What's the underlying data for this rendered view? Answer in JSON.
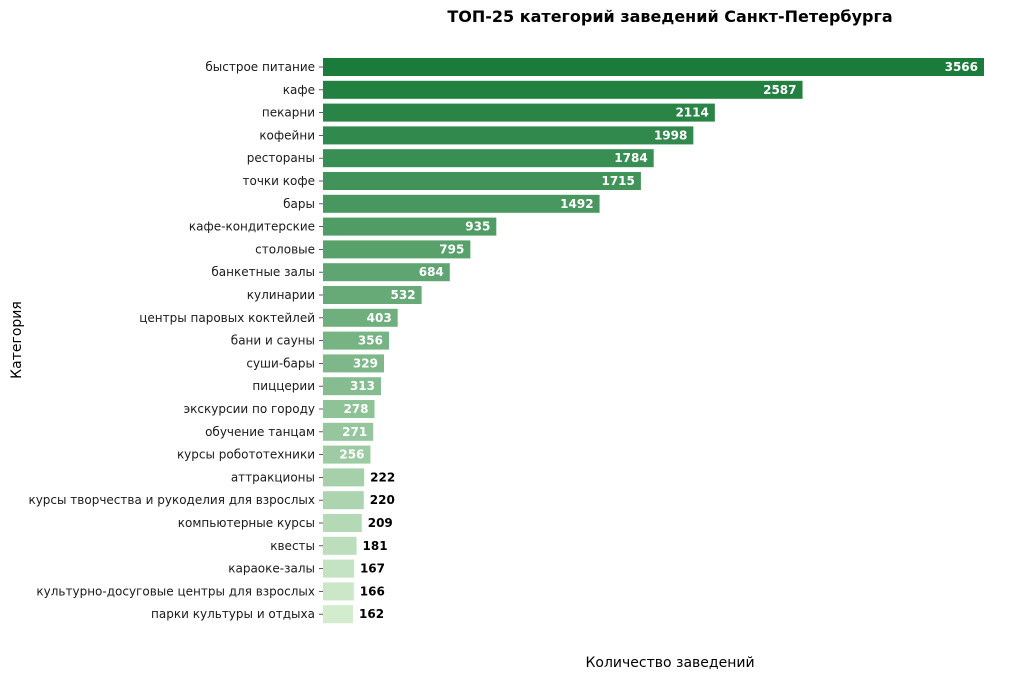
{
  "chart_data": {
    "type": "bar",
    "orientation": "horizontal",
    "title": "ТОП-25 категорий заведений Санкт-Петербурга",
    "xlabel": "Количество заведений",
    "ylabel": "Категория",
    "xlim": [
      0,
      3566
    ],
    "grid": false,
    "x_ticks_shown": false,
    "legend": "none",
    "colormap": "Greens",
    "color_dark": "#1a7b3a",
    "color_light": "#d3ecce",
    "label_color_inside": "#ffffff",
    "label_color_outside": "#000000",
    "categories": [
      "быстрое питание",
      "кафе",
      "пекарни",
      "кофейни",
      "рестораны",
      "точки кофе",
      "бары",
      "кафе-кондитерские",
      "столовые",
      "банкетные залы",
      "кулинарии",
      "центры паровых коктейлей",
      "бани и сауны",
      "суши-бары",
      "пиццерии",
      "экскурсии по городу",
      "обучение танцам",
      "курсы робототехники",
      "аттракционы",
      "курсы творчества и рукоделия для взрослых",
      "компьютерные курсы",
      "квесты",
      "караоке-залы",
      "культурно-досуговые центры для взрослых",
      "парки культуры и отдыха"
    ],
    "values": [
      3566,
      2587,
      2114,
      1998,
      1784,
      1715,
      1492,
      935,
      795,
      684,
      532,
      403,
      356,
      329,
      313,
      278,
      271,
      256,
      222,
      220,
      209,
      181,
      167,
      166,
      162
    ]
  }
}
